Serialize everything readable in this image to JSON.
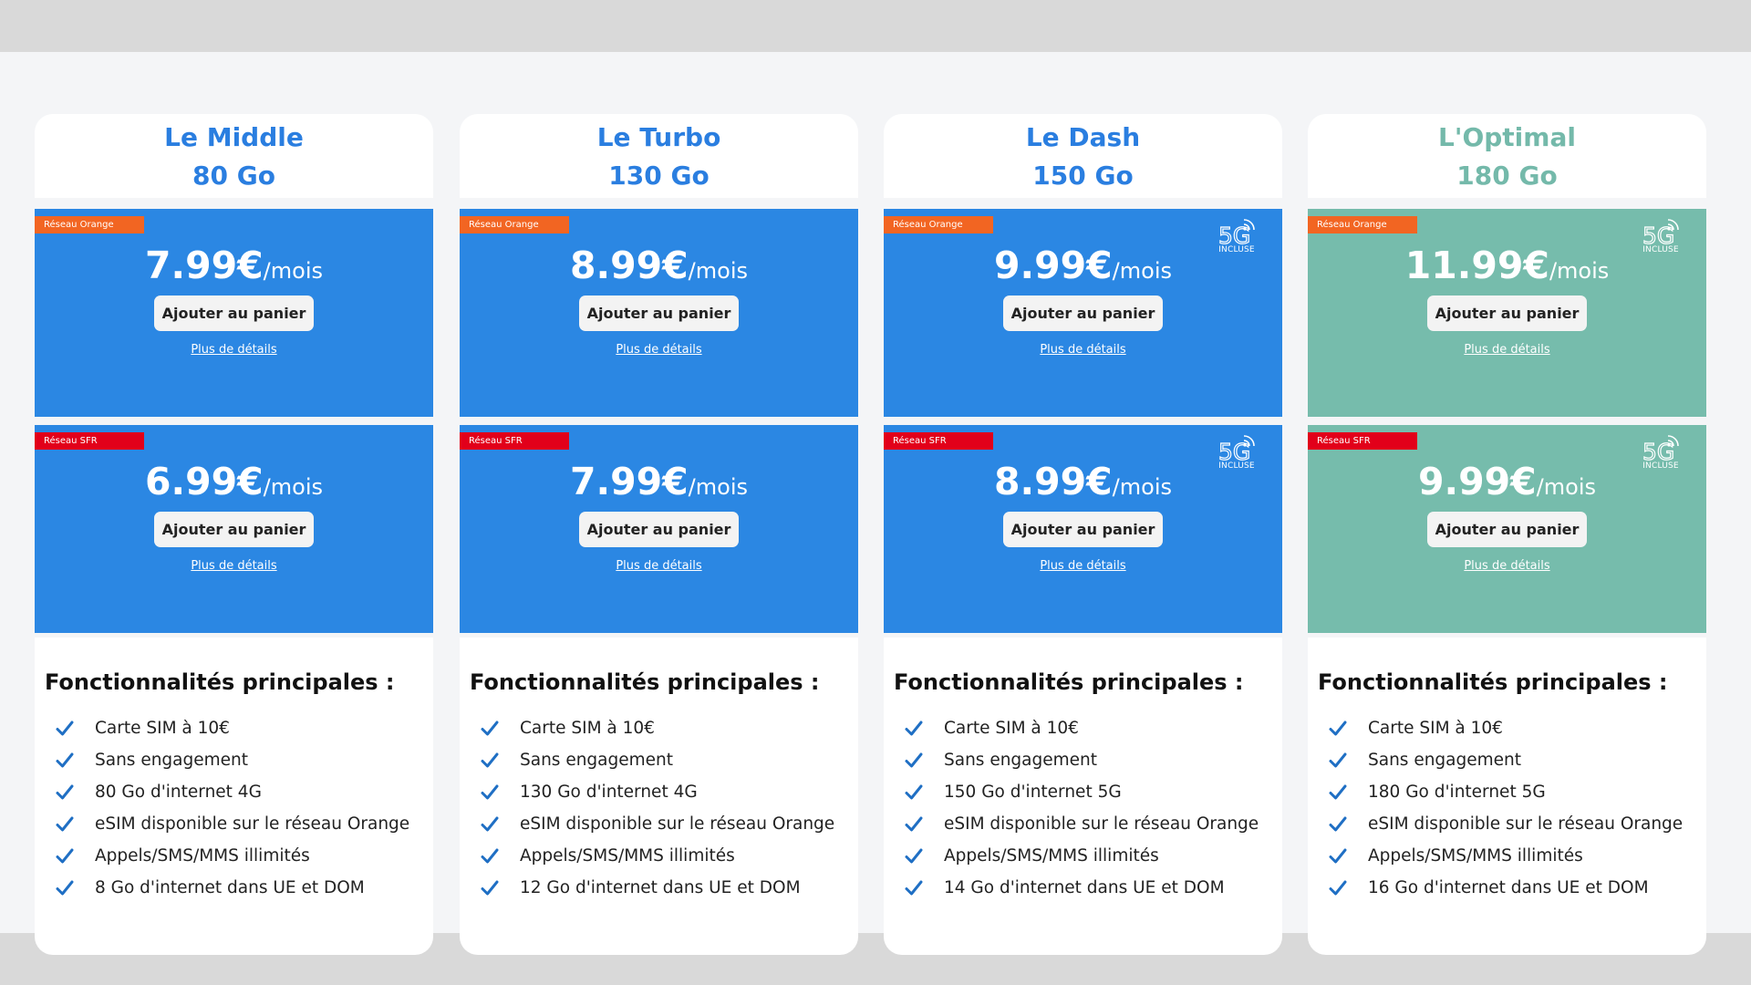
{
  "plans": [
    {
      "theme": "blue",
      "name": "Le Middle",
      "data": "80 Go",
      "offers": [
        {
          "network": "Réseau Orange",
          "network_color": "#f26522",
          "price": "7.99€",
          "period": "/mois",
          "has_5g": false,
          "cta": "Ajouter au panier",
          "details": "Plus de détails"
        },
        {
          "network": "Réseau SFR",
          "network_color": "#e2001a",
          "price": "6.99€",
          "period": "/mois",
          "has_5g": false,
          "cta": "Ajouter au panier",
          "details": "Plus de détails"
        }
      ],
      "features_title": "Fonctionnalités principales :",
      "features": [
        "Carte SIM à 10€",
        "Sans engagement",
        "80 Go d'internet 4G",
        "eSIM disponible sur le réseau Orange",
        "Appels/SMS/MMS illimités",
        "8 Go d'internet dans UE et DOM"
      ]
    },
    {
      "theme": "blue",
      "name": "Le Turbo",
      "data": "130 Go",
      "offers": [
        {
          "network": "Réseau Orange",
          "network_color": "#f26522",
          "price": "8.99€",
          "period": "/mois",
          "has_5g": false,
          "cta": "Ajouter au panier",
          "details": "Plus de détails"
        },
        {
          "network": "Réseau SFR",
          "network_color": "#e2001a",
          "price": "7.99€",
          "period": "/mois",
          "has_5g": false,
          "cta": "Ajouter au panier",
          "details": "Plus de détails"
        }
      ],
      "features_title": "Fonctionnalités principales :",
      "features": [
        "Carte SIM à 10€",
        "Sans engagement",
        "130 Go d'internet 4G",
        "eSIM disponible sur le réseau Orange",
        "Appels/SMS/MMS illimités",
        "12 Go d'internet dans UE et DOM"
      ]
    },
    {
      "theme": "blue",
      "name": "Le Dash",
      "data": "150 Go",
      "offers": [
        {
          "network": "Réseau Orange",
          "network_color": "#f26522",
          "price": "9.99€",
          "period": "/mois",
          "has_5g": true,
          "badge_text": "INCLUSE",
          "cta": "Ajouter au panier",
          "details": "Plus de détails"
        },
        {
          "network": "Réseau SFR",
          "network_color": "#e2001a",
          "price": "8.99€",
          "period": "/mois",
          "has_5g": true,
          "badge_text": "INCLUSE",
          "cta": "Ajouter au panier",
          "details": "Plus de détails"
        }
      ],
      "features_title": "Fonctionnalités principales :",
      "features": [
        "Carte SIM à 10€",
        "Sans engagement",
        "150 Go d'internet 5G",
        "eSIM disponible sur le réseau Orange",
        "Appels/SMS/MMS illimités",
        "14 Go d'internet dans UE et DOM"
      ]
    },
    {
      "theme": "green",
      "name": "L'Optimal",
      "data": "180 Go",
      "offers": [
        {
          "network": "Réseau Orange",
          "network_color": "#f26522",
          "price": "11.99€",
          "period": "/mois",
          "has_5g": true,
          "badge_text": "INCLUSE",
          "cta": "Ajouter au panier",
          "details": "Plus de détails"
        },
        {
          "network": "Réseau SFR",
          "network_color": "#e2001a",
          "price": "9.99€",
          "period": "/mois",
          "has_5g": true,
          "badge_text": "INCLUSE",
          "cta": "Ajouter au panier",
          "details": "Plus de détails"
        }
      ],
      "features_title": "Fonctionnalités principales :",
      "features": [
        "Carte SIM à 10€",
        "Sans engagement",
        "180 Go d'internet 5G",
        "eSIM disponible sur le réseau Orange",
        "Appels/SMS/MMS illimités",
        "16 Go d'internet dans UE et DOM"
      ]
    }
  ],
  "colors": {
    "blue_panel": "#2b87e3",
    "green_panel": "#76bcac",
    "check": "#1f6fc4"
  },
  "icons": {
    "feature_bullet": "checkmark-icon",
    "fiveg_badge": "5g-signal-icon"
  }
}
